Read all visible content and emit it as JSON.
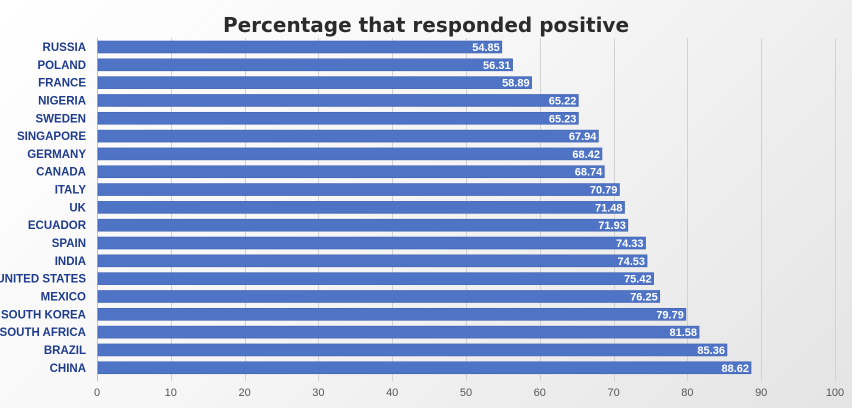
{
  "chart_data": {
    "type": "bar",
    "orientation": "horizontal",
    "title": "Percentage that responded positive",
    "xlabel": "",
    "ylabel": "",
    "categories": [
      "RUSSIA",
      "POLAND",
      "FRANCE",
      "NIGERIA",
      "SWEDEN",
      "SINGAPORE",
      "GERMANY",
      "CANADA",
      "ITALY",
      "UK",
      "ECUADOR",
      "SPAIN",
      "INDIA",
      "UNITED STATES",
      "MEXICO",
      "SOUTH KOREA",
      "SOUTH AFRICA",
      "BRAZIL",
      "CHINA"
    ],
    "values": [
      54.85,
      56.31,
      58.89,
      65.22,
      65.23,
      67.94,
      68.42,
      68.74,
      70.79,
      71.48,
      71.93,
      74.33,
      74.53,
      75.42,
      76.25,
      79.79,
      81.58,
      85.36,
      88.62
    ],
    "value_labels": [
      "54.85",
      "56.31",
      "58.89",
      "65.22",
      "65.23",
      "67.94",
      "68.42",
      "68.74",
      "70.79",
      "71.48",
      "71.93",
      "74.33",
      "74.53",
      "75.42",
      "76.25",
      "79.79",
      "81.58",
      "85.36",
      "88.62"
    ],
    "xlim": [
      0,
      100
    ],
    "x_ticks": [
      0,
      10,
      20,
      30,
      40,
      50,
      60,
      70,
      80,
      90,
      100
    ],
    "grid": true,
    "legend": "none",
    "colors": {
      "bar": "#4f74c6",
      "bar_edge": "#3f62b0",
      "category_text": "#1f3c8c",
      "value_text": "#ffffff",
      "gridline": "#d2d2d2"
    }
  }
}
